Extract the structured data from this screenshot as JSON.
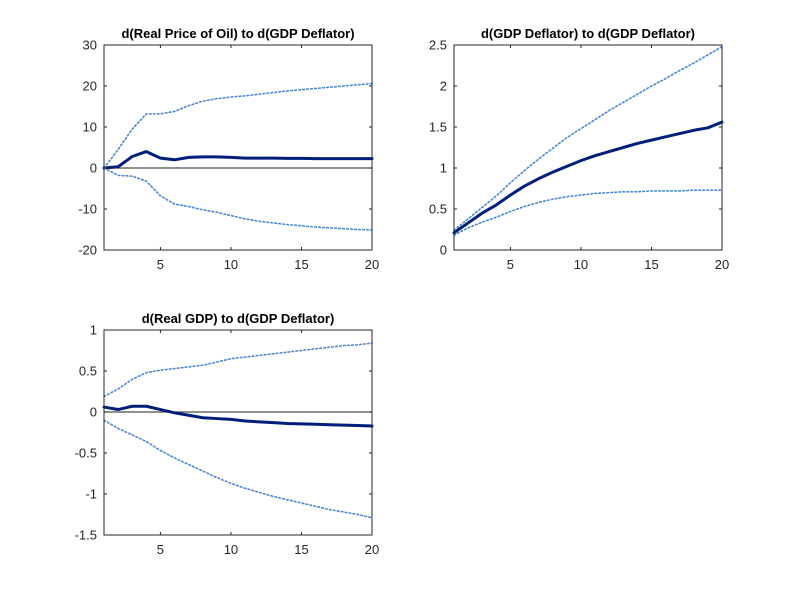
{
  "colors": {
    "response": "#001f7a",
    "band": "#4a86d4",
    "zero_line": "#4d4d4d"
  },
  "chart_data": [
    {
      "type": "line",
      "title": "d(Real Price of Oil) to d(GDP Deflator)",
      "x": [
        1,
        2,
        3,
        4,
        5,
        6,
        7,
        8,
        9,
        10,
        11,
        12,
        13,
        14,
        15,
        16,
        17,
        18,
        19,
        20
      ],
      "xlim": [
        1,
        20
      ],
      "ylim": [
        -20,
        30
      ],
      "xticks": [
        5,
        10,
        15,
        20
      ],
      "yticks": [
        -20,
        -10,
        0,
        10,
        20,
        30
      ],
      "zero_line": true,
      "grid": false,
      "series": [
        {
          "role": "response",
          "values": [
            0,
            0.3,
            2.8,
            4,
            2.4,
            2,
            2.6,
            2.7,
            2.7,
            2.6,
            2.4,
            2.4,
            2.4,
            2.35,
            2.35,
            2.3,
            2.3,
            2.3,
            2.3,
            2.3
          ]
        },
        {
          "role": "upper",
          "values": [
            0,
            4.5,
            9.5,
            13.2,
            13.2,
            13.8,
            15.2,
            16.3,
            16.9,
            17.3,
            17.6,
            18,
            18.4,
            18.8,
            19.1,
            19.4,
            19.7,
            20,
            20.3,
            20.6
          ]
        },
        {
          "role": "lower",
          "values": [
            0,
            -1.8,
            -2,
            -3.2,
            -6.8,
            -8.8,
            -9.4,
            -10.2,
            -10.8,
            -11.6,
            -12.4,
            -13,
            -13.4,
            -13.8,
            -14.1,
            -14.4,
            -14.6,
            -14.8,
            -15,
            -15.1
          ]
        }
      ]
    },
    {
      "type": "line",
      "title": "d(GDP Deflator) to d(GDP Deflator)",
      "x": [
        1,
        2,
        3,
        4,
        5,
        6,
        7,
        8,
        9,
        10,
        11,
        12,
        13,
        14,
        15,
        16,
        17,
        18,
        19,
        20
      ],
      "xlim": [
        1,
        20
      ],
      "ylim": [
        0,
        2.5
      ],
      "xticks": [
        5,
        10,
        15,
        20
      ],
      "yticks": [
        0,
        0.5,
        1,
        1.5,
        2,
        2.5
      ],
      "zero_line": false,
      "grid": false,
      "series": [
        {
          "role": "response",
          "values": [
            0.21,
            0.33,
            0.45,
            0.55,
            0.67,
            0.78,
            0.87,
            0.95,
            1.02,
            1.09,
            1.15,
            1.2,
            1.25,
            1.3,
            1.34,
            1.38,
            1.42,
            1.46,
            1.49,
            1.56
          ]
        },
        {
          "role": "upper",
          "values": [
            0.24,
            0.38,
            0.52,
            0.66,
            0.82,
            0.97,
            1.11,
            1.24,
            1.37,
            1.48,
            1.59,
            1.7,
            1.8,
            1.9,
            2.0,
            2.09,
            2.19,
            2.28,
            2.38,
            2.48
          ]
        },
        {
          "role": "lower",
          "values": [
            0.18,
            0.27,
            0.34,
            0.4,
            0.47,
            0.53,
            0.58,
            0.62,
            0.65,
            0.67,
            0.69,
            0.7,
            0.71,
            0.71,
            0.72,
            0.72,
            0.72,
            0.73,
            0.73,
            0.73
          ]
        }
      ]
    },
    {
      "type": "line",
      "title": "d(Real GDP) to d(GDP Deflator)",
      "x": [
        1,
        2,
        3,
        4,
        5,
        6,
        7,
        8,
        9,
        10,
        11,
        12,
        13,
        14,
        15,
        16,
        17,
        18,
        19,
        20
      ],
      "xlim": [
        1,
        20
      ],
      "ylim": [
        -1.5,
        1
      ],
      "xticks": [
        5,
        10,
        15,
        20
      ],
      "yticks": [
        -1.5,
        -1,
        -0.5,
        0,
        0.5,
        1
      ],
      "zero_line": true,
      "grid": false,
      "series": [
        {
          "role": "response",
          "values": [
            0.06,
            0.03,
            0.07,
            0.07,
            0.03,
            -0.01,
            -0.04,
            -0.07,
            -0.08,
            -0.09,
            -0.11,
            -0.12,
            -0.13,
            -0.14,
            -0.145,
            -0.15,
            -0.155,
            -0.16,
            -0.165,
            -0.17
          ]
        },
        {
          "role": "upper",
          "values": [
            0.19,
            0.28,
            0.4,
            0.48,
            0.51,
            0.53,
            0.55,
            0.57,
            0.61,
            0.65,
            0.67,
            0.69,
            0.71,
            0.73,
            0.75,
            0.77,
            0.79,
            0.81,
            0.82,
            0.84
          ]
        },
        {
          "role": "lower",
          "values": [
            -0.1,
            -0.2,
            -0.28,
            -0.36,
            -0.47,
            -0.56,
            -0.64,
            -0.72,
            -0.8,
            -0.87,
            -0.93,
            -0.98,
            -1.03,
            -1.07,
            -1.11,
            -1.15,
            -1.19,
            -1.22,
            -1.25,
            -1.29
          ]
        }
      ]
    }
  ]
}
